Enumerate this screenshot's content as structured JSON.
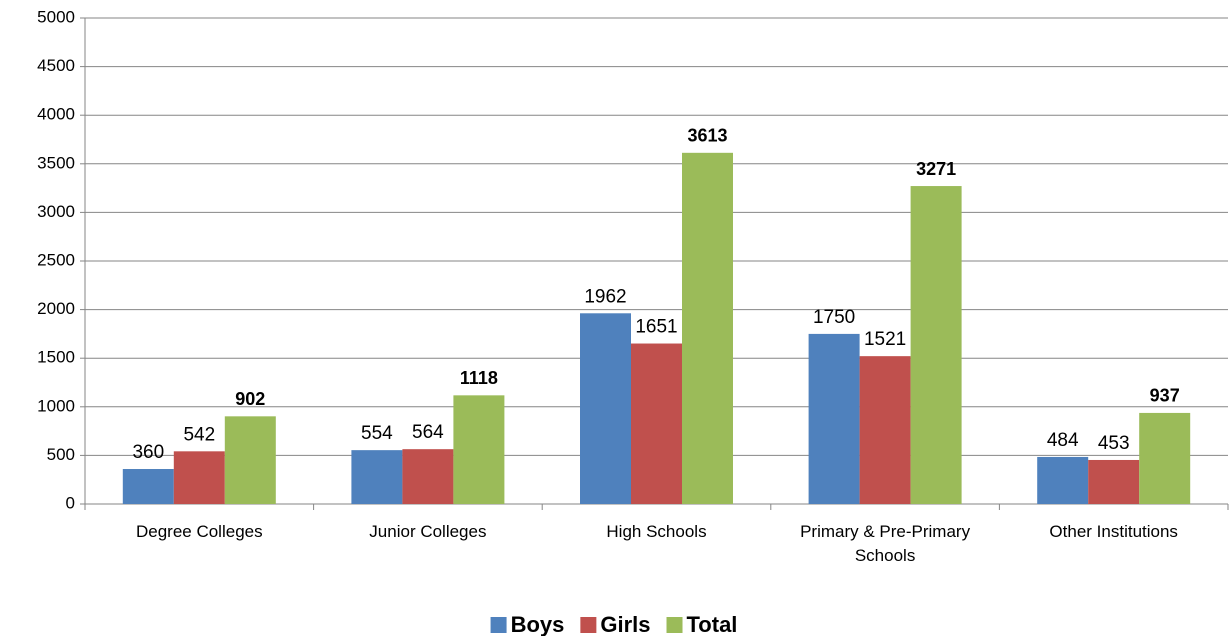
{
  "chart_data": {
    "type": "bar",
    "categories": [
      "Degree Colleges",
      "Junior Colleges",
      "High Schools",
      "Primary & Pre-Primary Schools",
      "Other Institutions"
    ],
    "series": [
      {
        "name": "Boys",
        "color": "#4f81bd",
        "values": [
          360,
          554,
          1962,
          1750,
          484
        ]
      },
      {
        "name": "Girls",
        "color": "#c0504d",
        "values": [
          542,
          564,
          1651,
          1521,
          453
        ]
      },
      {
        "name": "Total",
        "color": "#9bbb59",
        "values": [
          902,
          1118,
          3613,
          3271,
          937
        ]
      }
    ],
    "ylim": [
      0,
      5000
    ],
    "yticks": [
      0,
      500,
      1000,
      1500,
      2000,
      2500,
      3000,
      3500,
      4000,
      4500,
      5000
    ],
    "grid": true,
    "legend": "bottom"
  }
}
